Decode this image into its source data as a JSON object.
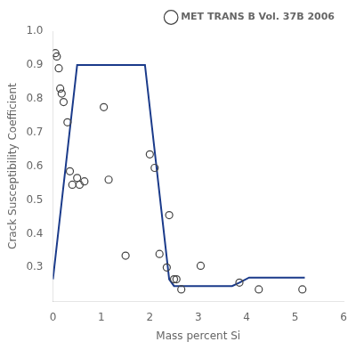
{
  "chart_data": {
    "type": "scatter",
    "xlabel": "Mass percent Si",
    "ylabel": "Crack Susceptibility Coefficient",
    "xlim": [
      0,
      6
    ],
    "ylim": [
      0.2,
      1.0
    ],
    "xticks": [
      0,
      1,
      2,
      3,
      4,
      5,
      6
    ],
    "yticks": [
      0.3,
      0.4,
      0.5,
      0.6,
      0.7,
      0.8,
      0.9,
      {
        "value": 1.0,
        "label": "1.0"
      }
    ],
    "grid": false,
    "legend": "upper right",
    "series": [
      {
        "type": "line",
        "color": "#1a3a8a",
        "line_style": "solid",
        "x": [
          0.0,
          0.5,
          1.9,
          2.4,
          2.5,
          3.7,
          3.85,
          4.05,
          5.2
        ],
        "values": [
          0.265,
          0.9,
          0.9,
          0.265,
          0.245,
          0.245,
          0.255,
          0.27,
          0.27
        ]
      },
      {
        "type": "scatter",
        "name": "MET TRANS B Vol. 37B 2006",
        "color": "#444444",
        "marker": "circle",
        "x": [
          0.05,
          0.08,
          0.12,
          0.15,
          0.18,
          0.22,
          0.3,
          0.35,
          0.4,
          0.5,
          0.55,
          0.65,
          1.05,
          1.15,
          1.5,
          2.0,
          2.1,
          2.2,
          2.35,
          2.4,
          2.5,
          2.55,
          2.65,
          3.05,
          3.85,
          4.25,
          5.15
        ],
        "values": [
          0.935,
          0.925,
          0.89,
          0.83,
          0.815,
          0.79,
          0.73,
          0.585,
          0.545,
          0.565,
          0.545,
          0.555,
          0.775,
          0.56,
          0.335,
          0.635,
          0.595,
          0.34,
          0.3,
          0.455,
          0.265,
          0.265,
          0.235,
          0.305,
          0.255,
          0.235,
          0.235
        ]
      }
    ]
  }
}
